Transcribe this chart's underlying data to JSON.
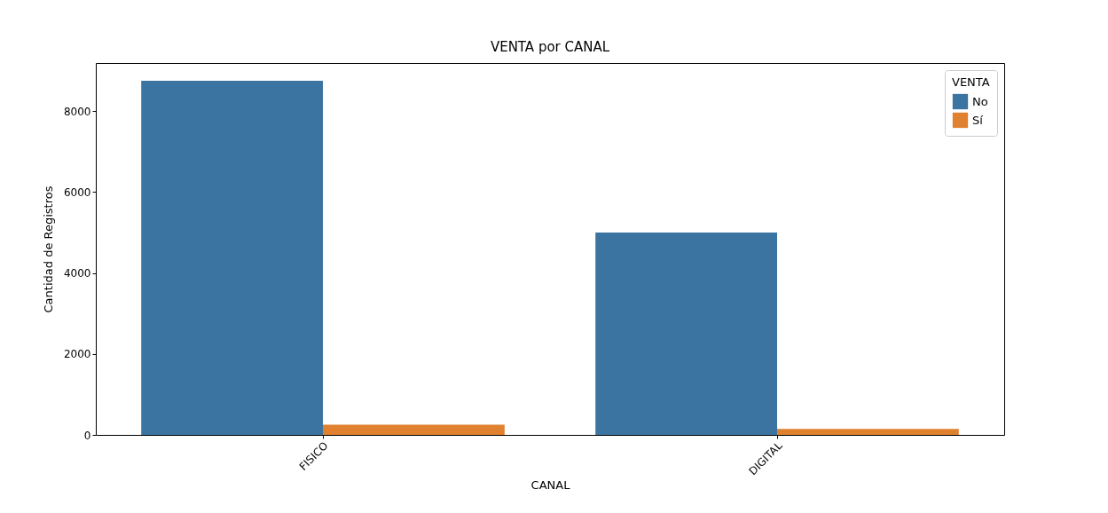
{
  "chart_data": {
    "type": "bar",
    "title": "VENTA por CANAL",
    "xlabel": "CANAL",
    "ylabel": "Cantidad de Registros",
    "legend_title": "VENTA",
    "categories": [
      "FISICO",
      "DIGITAL"
    ],
    "series": [
      {
        "name": "No",
        "color": "#3b73a1",
        "values": [
          8750,
          5000
        ]
      },
      {
        "name": "Sí",
        "color": "#e0812f",
        "values": [
          250,
          150
        ]
      }
    ],
    "ylim": [
      0,
      9190
    ],
    "yticks": [
      0,
      2000,
      4000,
      6000,
      8000
    ],
    "grid": false,
    "legend": "top right"
  }
}
